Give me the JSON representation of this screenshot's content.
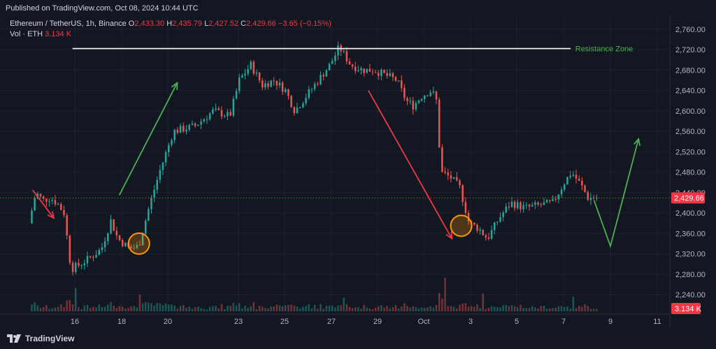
{
  "header": {
    "published": "Published on TradingView.com, Oct 08, 2024 10:44 UTC"
  },
  "legend": {
    "symbol": "Ethereum / TetherUS, 1h, Binance",
    "o_label": "O",
    "o_value": "2,433.30",
    "h_label": "H",
    "h_value": "2,435.79",
    "l_label": "L",
    "l_value": "2,427.52",
    "c_label": "C",
    "c_value": "2,429.66",
    "change": "−3.65 (−0.15%)",
    "vol_label": "Vol · ETH",
    "vol_value": "3.134 K"
  },
  "footer": {
    "brand": "TradingView",
    "logo_icon": "tradingview-logo-icon"
  },
  "colors": {
    "background": "#131722",
    "up": "#26a69a",
    "down": "#ef5350",
    "price_tag": "#f23645",
    "resistance_line": "#ffffff",
    "resistance_text": "#4caf50",
    "arrow_green": "#4caf50",
    "arrow_red": "#f23645",
    "circle": "#ff9800",
    "grid": "#1e2230"
  },
  "chart_data": {
    "type": "candlestick",
    "title": "Ethereum / TetherUS, 1h, Binance",
    "x_ticks": [
      "16",
      "18",
      "20",
      "23",
      "25",
      "27",
      "29",
      "Oct",
      "3",
      "5",
      "7",
      "9",
      "11"
    ],
    "y_ticks": [
      2240,
      2280,
      2320,
      2360,
      2400,
      2440,
      2480,
      2520,
      2560,
      2600,
      2640,
      2680,
      2720,
      2760
    ],
    "y_tick_labels": [
      "2,240.00",
      "2,280.00",
      "2,320.00",
      "2,360.00",
      "2,400.00",
      "2,440.00",
      "2,480.00",
      "2,520.00",
      "2,560.00",
      "2,600.00",
      "2,640.00",
      "2,680.00",
      "2,720.00",
      "2,760.00"
    ],
    "ylim": [
      2210,
      2780
    ],
    "last_price": 2429.66,
    "last_price_label": "2,429.66",
    "volume_last_label": "3.134 K",
    "price_path": [
      [
        14.1,
        2380
      ],
      [
        14.4,
        2440
      ],
      [
        14.7,
        2425
      ],
      [
        15.0,
        2430
      ],
      [
        15.3,
        2420
      ],
      [
        15.6,
        2400
      ],
      [
        15.9,
        2290
      ],
      [
        16.3,
        2300
      ],
      [
        16.8,
        2315
      ],
      [
        17.2,
        2330
      ],
      [
        17.6,
        2385
      ],
      [
        17.9,
        2350
      ],
      [
        18.4,
        2330
      ],
      [
        18.8,
        2335
      ],
      [
        19.3,
        2420
      ],
      [
        19.7,
        2480
      ],
      [
        20.3,
        2560
      ],
      [
        21.2,
        2570
      ],
      [
        22.0,
        2600
      ],
      [
        22.7,
        2590
      ],
      [
        23.1,
        2660
      ],
      [
        23.6,
        2690
      ],
      [
        24.1,
        2650
      ],
      [
        24.6,
        2660
      ],
      [
        25.1,
        2640
      ],
      [
        25.5,
        2600
      ],
      [
        26.0,
        2630
      ],
      [
        26.5,
        2660
      ],
      [
        27.0,
        2690
      ],
      [
        27.4,
        2725
      ],
      [
        27.9,
        2690
      ],
      [
        28.4,
        2680
      ],
      [
        28.9,
        2680
      ],
      [
        29.4,
        2670
      ],
      [
        29.9,
        2660
      ],
      [
        30.3,
        2620
      ],
      [
        30.6,
        2610
      ],
      [
        31.0,
        2630
      ],
      [
        31.4,
        2640
      ],
      [
        31.6,
        2620
      ],
      [
        31.8,
        2480
      ],
      [
        32.2,
        2470
      ],
      [
        32.6,
        2450
      ],
      [
        33.0,
        2380
      ],
      [
        33.4,
        2370
      ],
      [
        33.8,
        2350
      ],
      [
        34.3,
        2390
      ],
      [
        34.8,
        2420
      ],
      [
        35.4,
        2410
      ],
      [
        36.0,
        2415
      ],
      [
        36.6,
        2420
      ],
      [
        37.1,
        2460
      ],
      [
        37.4,
        2480
      ],
      [
        37.8,
        2455
      ],
      [
        38.1,
        2430
      ],
      [
        38.4,
        2429.66
      ]
    ],
    "annotations": [
      {
        "type": "horizontal_line",
        "y": 2722,
        "x_start": 15.9,
        "x_end": 37.3
      },
      {
        "type": "text",
        "text": "Resistance Zone",
        "x": 37.5,
        "y": 2722
      },
      {
        "type": "arrow",
        "color": "red",
        "from": [
          14.2,
          2445
        ],
        "to": [
          15.1,
          2390
        ]
      },
      {
        "type": "arrow",
        "color": "green",
        "from": [
          17.9,
          2435
        ],
        "to": [
          20.4,
          2655
        ]
      },
      {
        "type": "arrow",
        "color": "red",
        "from": [
          28.6,
          2640
        ],
        "to": [
          32.2,
          2350
        ]
      },
      {
        "type": "circle",
        "x": 18.75,
        "y": 2340
      },
      {
        "type": "circle",
        "x": 32.6,
        "y": 2375
      },
      {
        "type": "polyline",
        "color": "green",
        "points": [
          [
            38.3,
            2425
          ],
          [
            39.0,
            2335
          ],
          [
            40.2,
            2545
          ]
        ]
      }
    ]
  }
}
